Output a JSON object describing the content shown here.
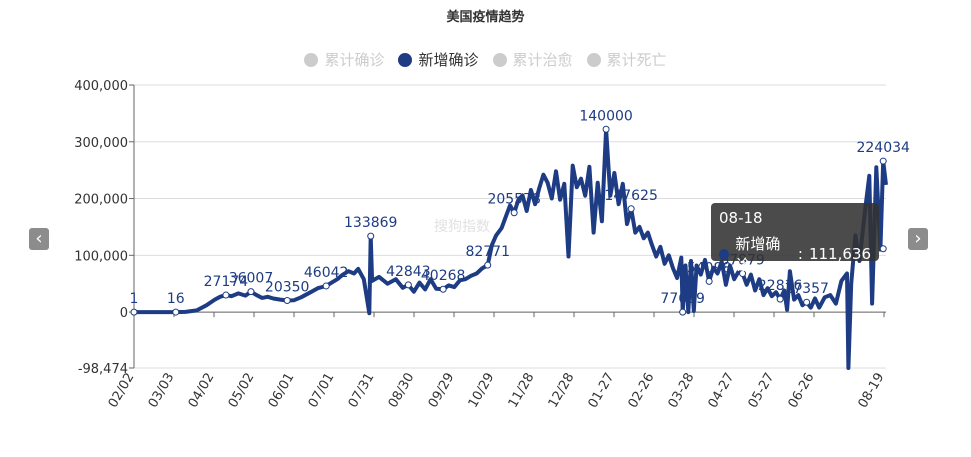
{
  "title": "美国疫情趋势",
  "legend": [
    {
      "label": "累计确诊",
      "active": false,
      "color": "#cccccc"
    },
    {
      "label": "新增确诊",
      "active": true,
      "color": "#1e3c83"
    },
    {
      "label": "累计治愈",
      "active": false,
      "color": "#cccccc"
    },
    {
      "label": "累计死亡",
      "active": false,
      "color": "#cccccc"
    }
  ],
  "nav": {
    "prev_icon": "‹",
    "next_icon": "›"
  },
  "watermark": "搜狗指数",
  "tooltip": {
    "date": "08-18",
    "series": "新增确诊",
    "value_text": "111,636",
    "dot_color": "#1e3c83"
  },
  "chart_data": {
    "type": "line",
    "title": "美国疫情趋势",
    "series_name": "新增确诊",
    "color": "#1e3c83",
    "y_ticks": [
      "400,000",
      "300,000",
      "200,000",
      "100,000",
      "0",
      "-98,474"
    ],
    "ylim": [
      -98474,
      400000
    ],
    "x_tick_labels": [
      "02/02",
      "03/03",
      "04/02",
      "05/02",
      "06/01",
      "07/01",
      "07/31",
      "08/30",
      "09/29",
      "10/29",
      "11/28",
      "12/28",
      "01-27",
      "02-26",
      "03-28",
      "04-27",
      "05-27",
      "06-26",
      "08-19"
    ],
    "points": [
      [
        0,
        1
      ],
      [
        15,
        5
      ],
      [
        30,
        16
      ],
      [
        37,
        400
      ],
      [
        45,
        3000
      ],
      [
        52,
        12000
      ],
      [
        58,
        22000
      ],
      [
        62,
        27174
      ],
      [
        66,
        30000
      ],
      [
        70,
        28000
      ],
      [
        75,
        33000
      ],
      [
        80,
        29000
      ],
      [
        84,
        36007
      ],
      [
        88,
        30000
      ],
      [
        92,
        25000
      ],
      [
        96,
        27000
      ],
      [
        100,
        24000
      ],
      [
        105,
        22000
      ],
      [
        110,
        20350
      ],
      [
        115,
        21000
      ],
      [
        120,
        26000
      ],
      [
        126,
        34000
      ],
      [
        132,
        42000
      ],
      [
        138,
        46042
      ],
      [
        142,
        52000
      ],
      [
        146,
        58000
      ],
      [
        150,
        66000
      ],
      [
        154,
        72000
      ],
      [
        158,
        68000
      ],
      [
        161,
        76000
      ],
      [
        165,
        58000
      ],
      [
        169,
        -2000
      ],
      [
        170,
        133869
      ],
      [
        171,
        55000
      ],
      [
        176,
        62000
      ],
      [
        182,
        50000
      ],
      [
        188,
        58000
      ],
      [
        193,
        42843
      ],
      [
        197,
        48000
      ],
      [
        201,
        36000
      ],
      [
        205,
        52000
      ],
      [
        209,
        40000
      ],
      [
        213,
        58000
      ],
      [
        217,
        41000
      ],
      [
        222,
        40268
      ],
      [
        226,
        47000
      ],
      [
        230,
        44000
      ],
      [
        234,
        56000
      ],
      [
        238,
        58000
      ],
      [
        242,
        64000
      ],
      [
        246,
        68000
      ],
      [
        250,
        77000
      ],
      [
        254,
        82771
      ],
      [
        257,
        118000
      ],
      [
        260,
        135000
      ],
      [
        264,
        148000
      ],
      [
        267,
        168000
      ],
      [
        270,
        188000
      ],
      [
        273,
        175000
      ],
      [
        276,
        198000
      ],
      [
        279,
        205578
      ],
      [
        282,
        178000
      ],
      [
        285,
        215000
      ],
      [
        288,
        190000
      ],
      [
        291,
        218000
      ],
      [
        294,
        242000
      ],
      [
        297,
        228000
      ],
      [
        300,
        200000
      ],
      [
        303,
        248000
      ],
      [
        306,
        198000
      ],
      [
        309,
        226000
      ],
      [
        312,
        98000
      ],
      [
        315,
        258000
      ],
      [
        318,
        220000
      ],
      [
        321,
        235000
      ],
      [
        324,
        205000
      ],
      [
        327,
        256000
      ],
      [
        330,
        140000
      ],
      [
        333,
        228000
      ],
      [
        336,
        160000
      ],
      [
        339,
        322000
      ],
      [
        342,
        205000
      ],
      [
        345,
        245000
      ],
      [
        348,
        190000
      ],
      [
        351,
        226000
      ],
      [
        354,
        155000
      ],
      [
        357,
        182000
      ],
      [
        360,
        140000
      ],
      [
        363,
        150000
      ],
      [
        366,
        130000
      ],
      [
        369,
        140000
      ],
      [
        372,
        118000
      ],
      [
        375,
        98000
      ],
      [
        378,
        115000
      ],
      [
        381,
        85000
      ],
      [
        384,
        100000
      ],
      [
        387,
        77639
      ],
      [
        390,
        60000
      ],
      [
        393,
        96000
      ],
      [
        394,
        0
      ],
      [
        396,
        82000
      ],
      [
        398,
        0
      ],
      [
        400,
        90000
      ],
      [
        402,
        2000
      ],
      [
        404,
        82000
      ],
      [
        407,
        66000
      ],
      [
        410,
        92000
      ],
      [
        413,
        54098
      ],
      [
        416,
        78000
      ],
      [
        419,
        68000
      ],
      [
        422,
        89000
      ],
      [
        425,
        48000
      ],
      [
        428,
        82000
      ],
      [
        431,
        58000
      ],
      [
        434,
        71000
      ],
      [
        437,
        67879
      ],
      [
        440,
        48000
      ],
      [
        443,
        66000
      ],
      [
        446,
        38000
      ],
      [
        449,
        58000
      ],
      [
        452,
        30000
      ],
      [
        455,
        42000
      ],
      [
        458,
        28000
      ],
      [
        461,
        35000
      ],
      [
        464,
        22816
      ],
      [
        467,
        38000
      ],
      [
        469,
        4000
      ],
      [
        471,
        72000
      ],
      [
        474,
        22000
      ],
      [
        477,
        30000
      ],
      [
        480,
        12000
      ],
      [
        483,
        17357
      ],
      [
        486,
        8000
      ],
      [
        489,
        24000
      ],
      [
        492,
        8000
      ],
      [
        496,
        26000
      ],
      [
        500,
        30000
      ],
      [
        504,
        15000
      ],
      [
        508,
        55000
      ],
      [
        512,
        68000
      ],
      [
        513,
        -98474
      ],
      [
        515,
        50000
      ],
      [
        518,
        135000
      ],
      [
        521,
        90000
      ],
      [
        525,
        180000
      ],
      [
        528,
        240000
      ],
      [
        530,
        15000
      ],
      [
        533,
        255000
      ],
      [
        536,
        110000
      ],
      [
        538,
        266000
      ],
      [
        540,
        224034
      ]
    ],
    "labels": [
      {
        "idx": 0,
        "text": "1"
      },
      {
        "idx": 2,
        "text": "16"
      },
      {
        "idx": 8,
        "text": "27174"
      },
      {
        "idx": 12,
        "text": "36007"
      },
      {
        "idx": 18,
        "text": "20350"
      },
      {
        "idx": 23,
        "text": "46042"
      },
      {
        "idx": 32,
        "text": "133869"
      },
      {
        "idx": 38,
        "text": "42843"
      },
      {
        "idx": 44,
        "text": "40268"
      },
      {
        "idx": 52,
        "text": "82771"
      },
      {
        "idx": 58,
        "text": "205578"
      },
      {
        "idx": 80,
        "text": "140000"
      },
      {
        "idx": 86,
        "text": "147625"
      },
      {
        "idx": 99,
        "text": "77639"
      },
      {
        "idx": 107,
        "text": "54098"
      },
      {
        "idx": 115,
        "text": "67879"
      },
      {
        "idx": 124,
        "text": "22816"
      },
      {
        "idx": 131,
        "text": "17357"
      },
      {
        "idx": 149,
        "text": "224034"
      }
    ]
  }
}
